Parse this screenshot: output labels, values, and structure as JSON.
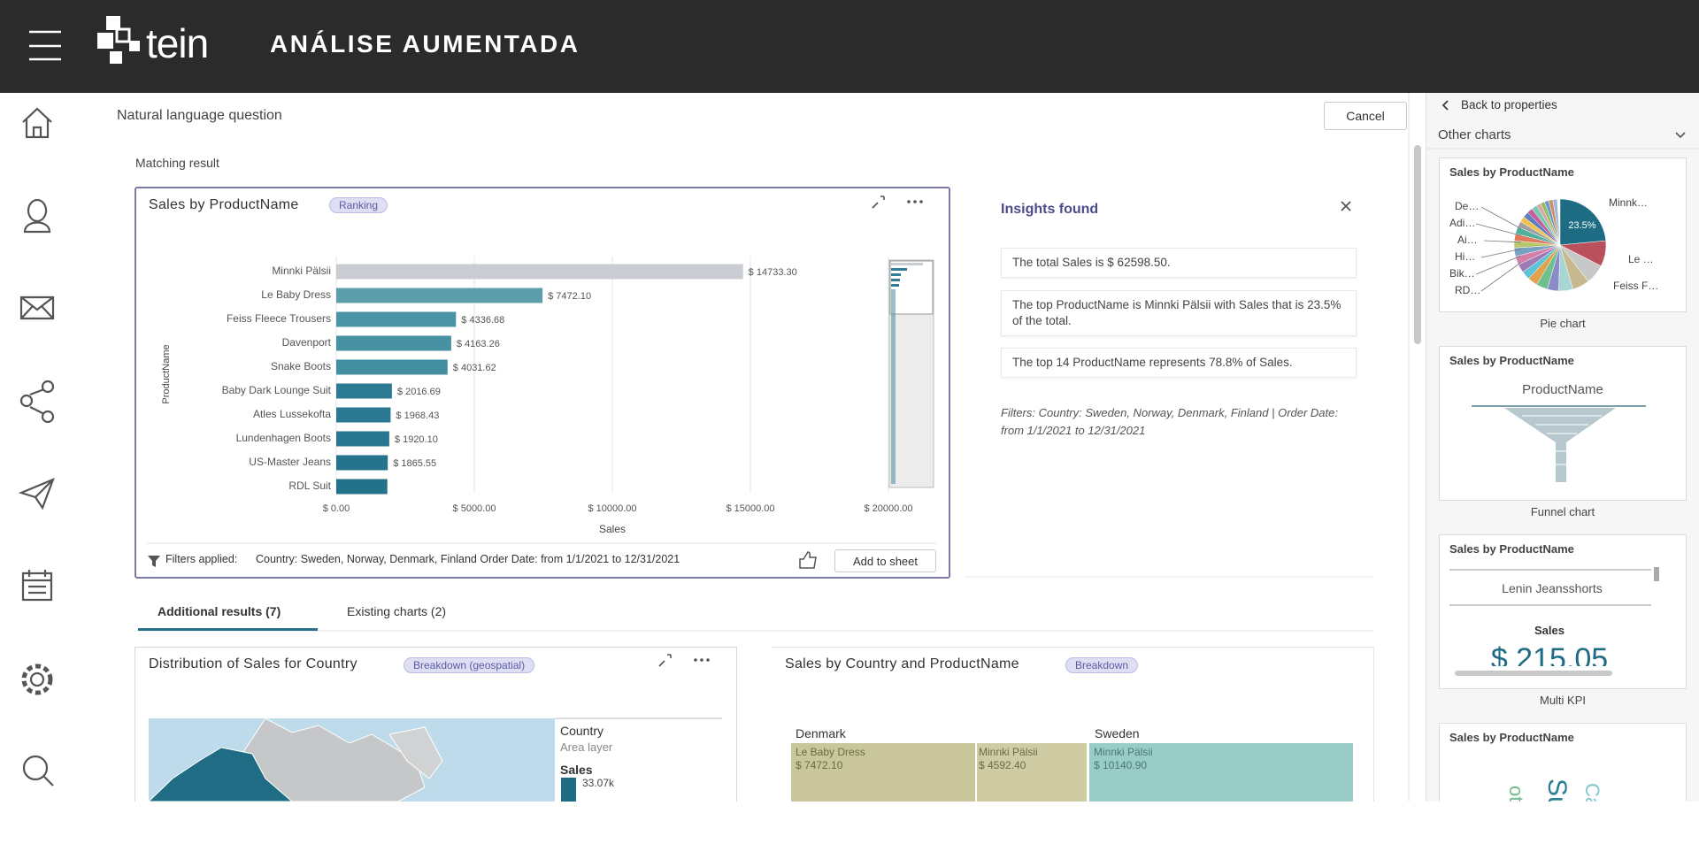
{
  "header": {
    "logo": "tein",
    "title": "ANÁLISE AUMENTADA"
  },
  "page": {
    "question_label": "Natural language question",
    "cancel": "Cancel",
    "matching_result": "Matching result"
  },
  "main_card": {
    "title": "Sales by ProductName",
    "badge": "Ranking",
    "filters_label": "Filters applied:",
    "filters_text": "Country: Sweden, Norway, Denmark, Finland Order Date: from 1/1/2021 to 12/31/2021",
    "add_button": "Add to sheet"
  },
  "chart_data": {
    "type": "bar",
    "orientation": "horizontal",
    "categories": [
      "Minnki Pälsii",
      "Le Baby Dress",
      "Feiss Fleece Trousers",
      "Davenport",
      "Snake Boots",
      "Baby Dark Lounge Suit",
      "Atles Lussekofta",
      "Lundenhagen Boots",
      "US-Master Jeans",
      "RDL Suit"
    ],
    "values": [
      14733.3,
      7472.1,
      4336.68,
      4163.26,
      4031.62,
      2016.69,
      1968.43,
      1920.1,
      1865.55,
      1850
    ],
    "value_labels": [
      "$ 14733.30",
      "$ 7472.10",
      "$ 4336.68",
      "$ 4163.26",
      "$ 4031.62",
      "$ 2016.69",
      "$ 1968.43",
      "$ 1920.10",
      "$ 1865.55",
      null
    ],
    "colors": [
      "#c9cdd1",
      "#5d9eac",
      "#4b94a6",
      "#4791a3",
      "#438ea1",
      "#2c7b93",
      "#2a7891",
      "#28768f",
      "#26738c",
      "#24718a"
    ],
    "xlim": [
      0,
      20000
    ],
    "xticks": [
      {
        "value": 0,
        "label": "$ 0.00"
      },
      {
        "value": 5000,
        "label": "$ 5000.00"
      },
      {
        "value": 10000,
        "label": "$ 10000.00"
      },
      {
        "value": 15000,
        "label": "$ 15000.00"
      },
      {
        "value": 20000,
        "label": "$ 20000.00"
      }
    ],
    "xlabel": "Sales",
    "ylabel": "ProductName",
    "grid": true
  },
  "insights": {
    "title": "Insights found",
    "items": [
      "The total Sales is $ 62598.50.",
      "The top ProductName is Minnki Pälsii with Sales that is 23.5% of the total.",
      "The top 14 ProductName represents 78.8% of Sales."
    ],
    "filters": "Filters: Country: Sweden, Norway, Denmark, Finland | Order Date: from 1/1/2021 to 12/31/2021"
  },
  "tabs": [
    "Additional results (7)",
    "Existing charts (2)"
  ],
  "results": [
    {
      "title": "Distribution of Sales for Country",
      "badge": "Breakdown (geospatial)",
      "legend": {
        "title": "Country",
        "subtitle": "Area layer",
        "measure": "Sales",
        "max": "33.07k"
      }
    },
    {
      "title": "Sales by Country and ProductName",
      "badge": "Breakdown",
      "groups": [
        {
          "name": "Denmark",
          "cells": [
            {
              "label": "Le Baby Dress",
              "value": "$ 7472.10"
            },
            {
              "label": "Minnki Pälsii",
              "value": "$ 4592.40"
            }
          ]
        },
        {
          "name": "Sweden",
          "cells": [
            {
              "label": "Minnki Pälsii",
              "value": "$ 10140.90"
            }
          ]
        }
      ]
    }
  ],
  "side_panel": {
    "back": "Back to properties",
    "section": "Other charts",
    "cards": [
      {
        "title": "Sales by ProductName",
        "caption": "Pie chart",
        "labels": [
          "De…",
          "Adi…",
          "Ai…",
          "Hi…",
          "Bik…",
          "RD…",
          "Minnk…",
          "Le …",
          "Feiss F…"
        ],
        "highlight": "23.5%"
      },
      {
        "title": "Sales by ProductName",
        "caption": "Funnel chart",
        "dimension": "ProductName"
      },
      {
        "title": "Sales by ProductName",
        "caption": "Multi KPI",
        "item": "Lenin Jeansshorts",
        "measure": "Sales",
        "value": "$ 215.05"
      },
      {
        "title": "Sales by ProductName",
        "words": [
          "ots",
          "Suit",
          "Ca"
        ]
      }
    ]
  }
}
